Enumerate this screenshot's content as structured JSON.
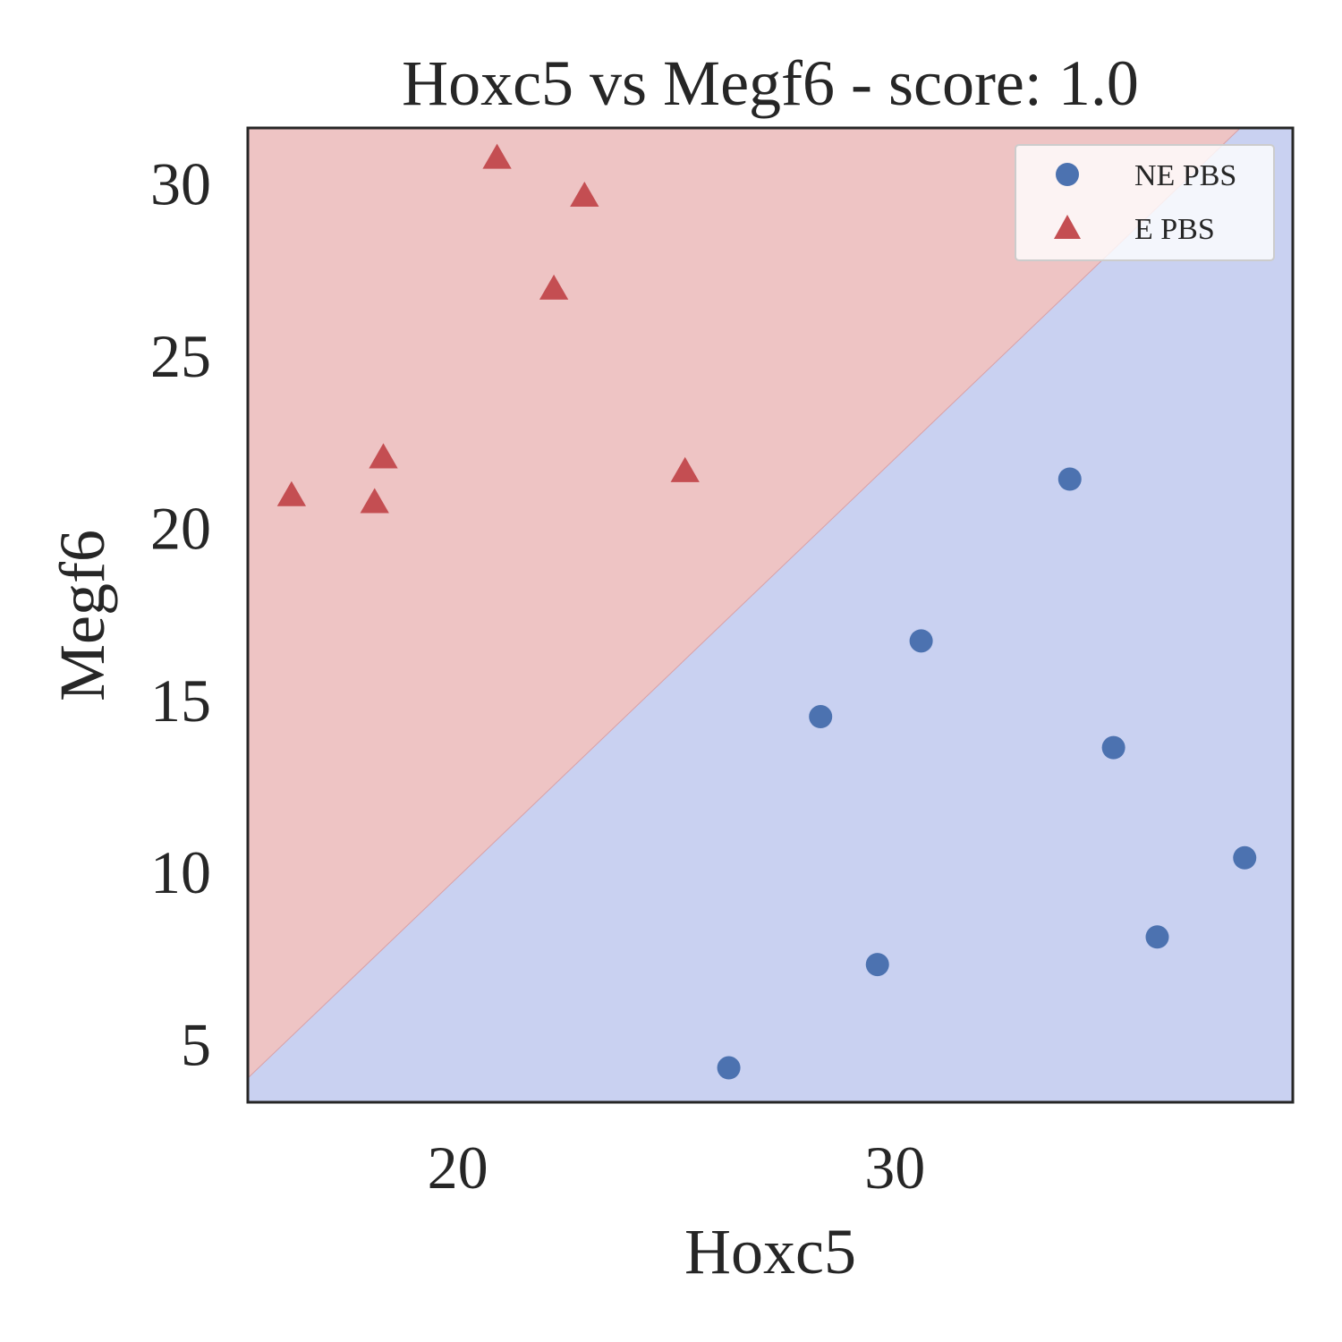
{
  "chart_data": {
    "type": "scatter",
    "title": "Hoxc5 vs Megf6 - score: 1.0",
    "xlabel": "Hoxc5",
    "ylabel": "Megf6",
    "xlim": [
      15.2,
      39.1
    ],
    "ylim": [
      3.3,
      31.6
    ],
    "xticks": [
      20,
      30
    ],
    "yticks": [
      5,
      10,
      15,
      20,
      25,
      30
    ],
    "grid": false,
    "legend_position": "top-right",
    "decision_boundary": {
      "points": [
        [
          15.2,
          4.0
        ],
        [
          37.9,
          31.6
        ]
      ],
      "upper_region": "E PBS",
      "lower_region": "NE PBS"
    },
    "series": [
      {
        "name": "NE PBS",
        "marker": "circle",
        "color": "#4c72b0",
        "region_color": "#c9d1f1",
        "points": [
          [
            26.2,
            4.3
          ],
          [
            28.3,
            14.5
          ],
          [
            29.6,
            7.3
          ],
          [
            30.6,
            16.7
          ],
          [
            34.0,
            21.4
          ],
          [
            35.0,
            13.6
          ],
          [
            36.0,
            8.1
          ],
          [
            38.0,
            10.4
          ]
        ]
      },
      {
        "name": "E PBS",
        "marker": "triangle",
        "color": "#c44e52",
        "region_color": "#eec4c4",
        "points": [
          [
            16.2,
            20.9
          ],
          [
            18.1,
            20.7
          ],
          [
            18.3,
            22.0
          ],
          [
            20.9,
            30.7
          ],
          [
            22.2,
            26.9
          ],
          [
            22.9,
            29.6
          ],
          [
            25.2,
            21.6
          ]
        ]
      }
    ]
  }
}
